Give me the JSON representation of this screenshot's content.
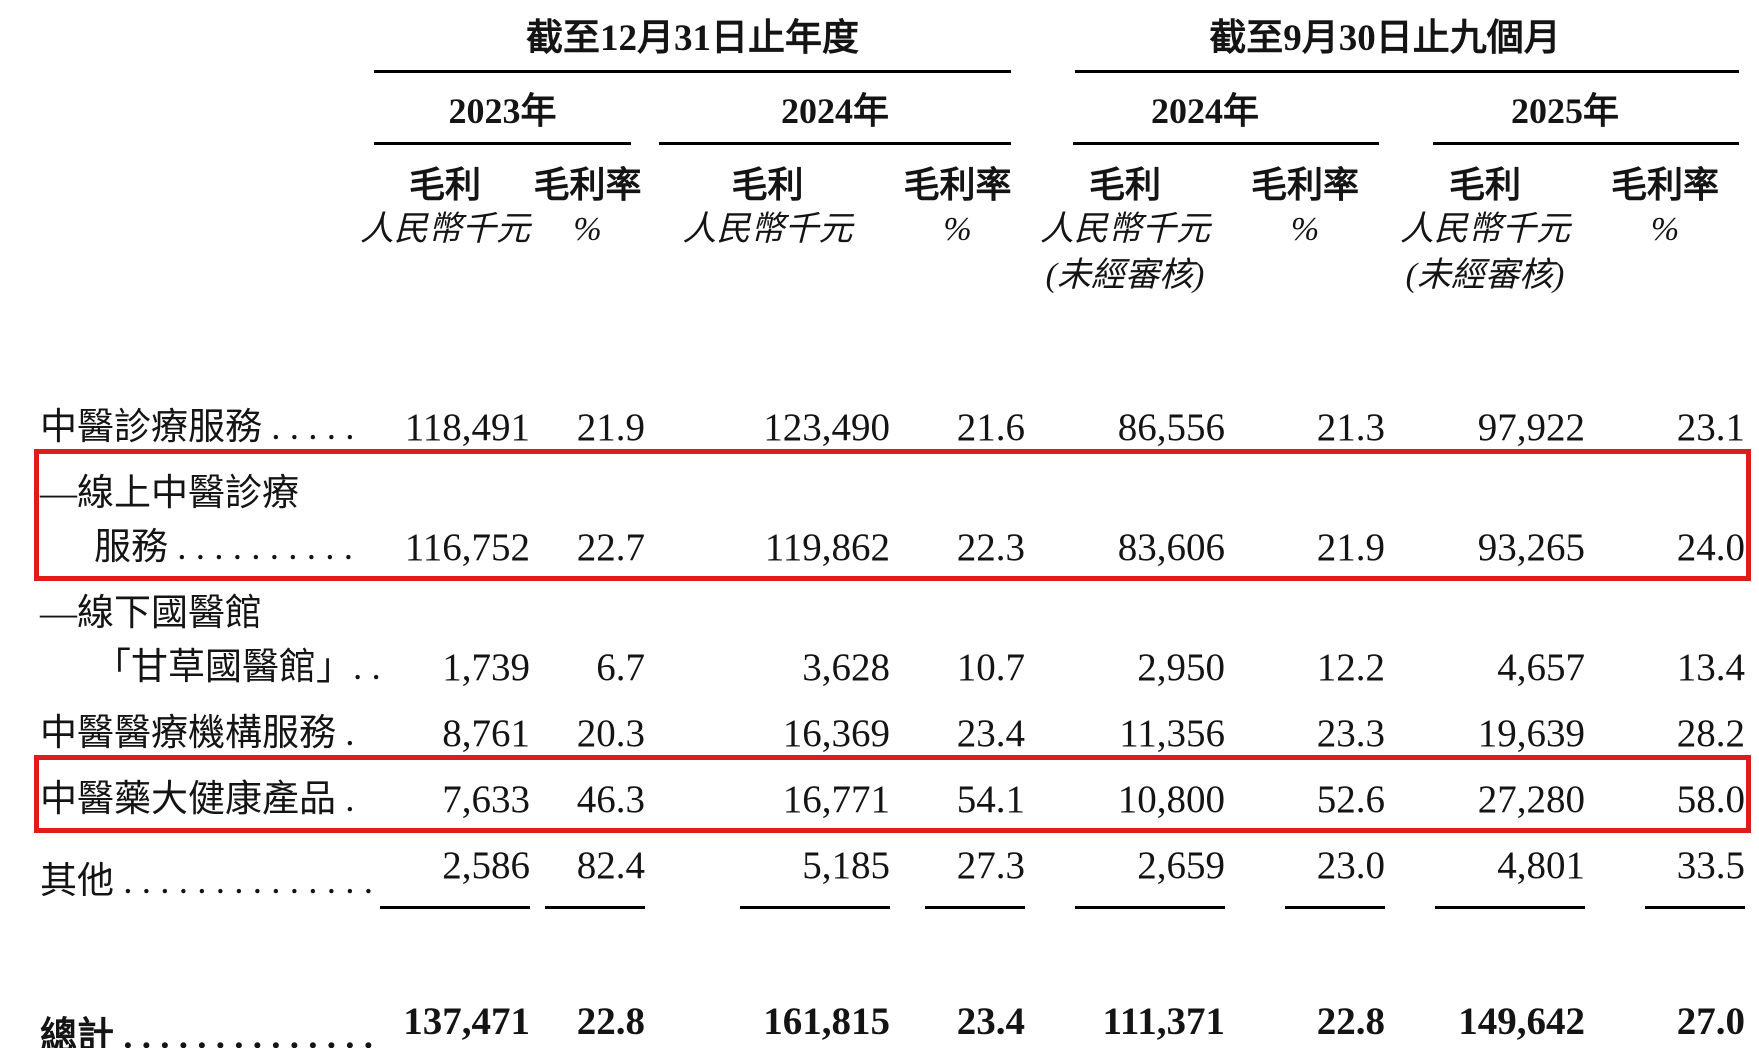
{
  "colors": {
    "highlight_border": "#de1c1c",
    "text": "#141414",
    "background": "#ffffff"
  },
  "table": {
    "col_groups": [
      {
        "title": "截至12月31日止年度",
        "years": [
          {
            "label": "2023年"
          },
          {
            "label": "2024年"
          }
        ]
      },
      {
        "title": "截至9月30日止九個月",
        "years": [
          {
            "label": "2024年"
          },
          {
            "label": "2025年"
          }
        ]
      }
    ],
    "sub_headers": {
      "gross_profit": "毛利",
      "gross_margin": "毛利率",
      "unit_currency": "人民幣千元",
      "unit_percent": "%",
      "unaudited": "(未經審核)"
    },
    "rows": [
      {
        "label_lines": [
          "中醫診療服務 . . . . ."
        ],
        "values": [
          "118,491",
          "21.9",
          "123,490",
          "21.6",
          "86,556",
          "21.3",
          "97,922",
          "23.1"
        ],
        "highlight": false,
        "rule": "none"
      },
      {
        "label_lines": [
          "—線上中醫診療",
          "服務 . . . . . . . . . ."
        ],
        "values": [
          "116,752",
          "22.7",
          "119,862",
          "22.3",
          "83,606",
          "21.9",
          "93,265",
          "24.0"
        ],
        "highlight": true,
        "rule": "none"
      },
      {
        "label_lines": [
          "—線下國醫館",
          "「甘草國醫館」. ."
        ],
        "values": [
          "1,739",
          "6.7",
          "3,628",
          "10.7",
          "2,950",
          "12.2",
          "4,657",
          "13.4"
        ],
        "highlight": false,
        "rule": "none"
      },
      {
        "label_lines": [
          "中醫醫療機構服務 ."
        ],
        "values": [
          "8,761",
          "20.3",
          "16,369",
          "23.4",
          "11,356",
          "23.3",
          "19,639",
          "28.2"
        ],
        "highlight": false,
        "rule": "none"
      },
      {
        "label_lines": [
          "中醫藥大健康產品 ."
        ],
        "values": [
          "7,633",
          "46.3",
          "16,771",
          "54.1",
          "10,800",
          "52.6",
          "27,280",
          "58.0"
        ],
        "highlight": true,
        "rule": "none"
      },
      {
        "label_lines": [
          "其他 . . . . . . . . . . . . . ."
        ],
        "values": [
          "2,586",
          "82.4",
          "5,185",
          "27.3",
          "2,659",
          "23.0",
          "4,801",
          "33.5"
        ],
        "highlight": false,
        "rule": "single"
      }
    ],
    "total_row": {
      "label": "總計 . . . . . . . . . . . . . .",
      "values": [
        "137,471",
        "22.8",
        "161,815",
        "23.4",
        "111,371",
        "22.8",
        "149,642",
        "27.0"
      ]
    }
  }
}
